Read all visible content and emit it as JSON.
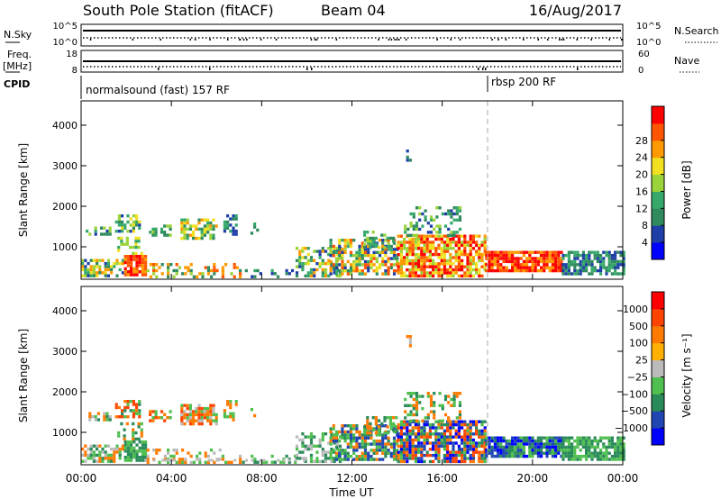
{
  "header": {
    "station": "South Pole Station (fitACF)",
    "beam": "Beam 04",
    "date": "16/Aug/2017"
  },
  "strip_panels": {
    "sky": {
      "left_label": "N.Sky",
      "right_label": "N.Search",
      "left_ticks": [
        "10^5",
        "10^0"
      ],
      "right_ticks": [
        "10^5",
        "10^0"
      ]
    },
    "freq": {
      "left_label_1": "Freq.",
      "left_label_2": "[MHz]",
      "right_label": "Nave",
      "left_ticks": [
        "18",
        "8"
      ],
      "right_ticks": [
        "60",
        "0"
      ]
    },
    "cpid": {
      "label": "CPID",
      "programs": [
        {
          "name": "normalsound (fast) 157 RF",
          "start_hour": 0
        },
        {
          "name": "rbsp 200 RF",
          "start_hour": 18
        }
      ]
    }
  },
  "chart_data": [
    {
      "type": "heatmap",
      "name": "power",
      "ylabel": "Slant Range [km]",
      "ylim": [
        200,
        4600
      ],
      "yticks": [
        "1000",
        "2000",
        "3000",
        "4000"
      ],
      "xlim": [
        0,
        24
      ],
      "colorbar_label": "Power [dB]",
      "colorbar_ticks": [
        "4",
        "8",
        "12",
        "16",
        "20",
        "24",
        "28"
      ],
      "colors": [
        "#0000ff",
        "#1f3fa8",
        "#2f8a5e",
        "#36a86a",
        "#9bd33a",
        "#f0e020",
        "#ff9900",
        "#ff5500",
        "#ff0000"
      ]
    },
    {
      "type": "heatmap",
      "name": "velocity",
      "ylabel": "Slant Range [km]",
      "ylim": [
        200,
        4600
      ],
      "yticks": [
        "1000",
        "2000",
        "3000",
        "4000"
      ],
      "xlim": [
        0,
        24
      ],
      "colorbar_label": "Velocity [m s⁻¹]",
      "colorbar_ticks": [
        "1000",
        "500",
        "100",
        "25",
        "−25",
        "−100",
        "−500",
        "−1000"
      ],
      "colors": [
        "#0000ff",
        "#2046b4",
        "#2a8a5a",
        "#4fbf4f",
        "#bbbbbb",
        "#ffb000",
        "#ff7a00",
        "#ff4400",
        "#ff0000"
      ]
    }
  ],
  "xaxis": {
    "label": "Time UT",
    "ticks": [
      "00:00",
      "04:00",
      "08:00",
      "12:00",
      "16:00",
      "20:00",
      "00:00"
    ]
  },
  "scatter_regions": [
    {
      "t0": 0.2,
      "t1": 1.3,
      "r0": 1300,
      "r1": 1500,
      "pc": [
        1,
        2,
        3,
        4
      ],
      "vc": [
        4,
        2,
        6,
        3
      ],
      "d": 0.6
    },
    {
      "t0": 1.5,
      "t1": 2.6,
      "r0": 1400,
      "r1": 1800,
      "pc": [
        1,
        2,
        3,
        4,
        5
      ],
      "vc": [
        2,
        6,
        7,
        3
      ],
      "d": 0.6
    },
    {
      "t0": 3.0,
      "t1": 4.0,
      "r0": 1250,
      "r1": 1550,
      "pc": [
        2,
        3,
        4
      ],
      "vc": [
        6,
        7,
        3
      ],
      "d": 0.5
    },
    {
      "t0": 4.4,
      "t1": 6.0,
      "r0": 1200,
      "r1": 1700,
      "pc": [
        2,
        3,
        4,
        5,
        6
      ],
      "vc": [
        6,
        7,
        3,
        4
      ],
      "d": 0.7
    },
    {
      "t0": 6.3,
      "t1": 6.9,
      "r0": 1300,
      "r1": 1800,
      "pc": [
        1,
        2,
        3
      ],
      "vc": [
        3,
        6
      ],
      "d": 0.5
    },
    {
      "t0": 7.5,
      "t1": 7.8,
      "r0": 1300,
      "r1": 1600,
      "pc": [
        2,
        3
      ],
      "vc": [
        3,
        6
      ],
      "d": 0.3
    },
    {
      "t0": 1.6,
      "t1": 2.7,
      "r0": 800,
      "r1": 1250,
      "pc": [
        3,
        4,
        5
      ],
      "vc": [
        2,
        3,
        6
      ],
      "d": 0.4
    },
    {
      "t0": 0.0,
      "t1": 1.9,
      "r0": 300,
      "r1": 700,
      "pc": [
        1,
        2,
        3,
        4,
        5,
        6
      ],
      "vc": [
        3,
        2,
        6,
        4
      ],
      "d": 0.65
    },
    {
      "t0": 1.9,
      "t1": 2.9,
      "r0": 300,
      "r1": 800,
      "pc": [
        6,
        7,
        8
      ],
      "vc": [
        2,
        3
      ],
      "d": 0.85
    },
    {
      "t0": 2.9,
      "t1": 7.0,
      "r0": 250,
      "r1": 600,
      "pc": [
        2,
        4,
        6,
        7
      ],
      "vc": [
        4,
        6,
        3
      ],
      "d": 0.3
    },
    {
      "t0": 7.0,
      "t1": 9.5,
      "r0": 250,
      "r1": 450,
      "pc": [
        1,
        2,
        3
      ],
      "vc": [
        2,
        3
      ],
      "d": 0.4
    },
    {
      "t0": 9.5,
      "t1": 11.5,
      "r0": 300,
      "r1": 1000,
      "pc": [
        1,
        2,
        3,
        4,
        5,
        6
      ],
      "vc": [
        2,
        3,
        4
      ],
      "d": 0.5
    },
    {
      "t0": 11.0,
      "t1": 14.0,
      "r0": 300,
      "r1": 1200,
      "pc": [
        1,
        2,
        3,
        4,
        5,
        6,
        7
      ],
      "vc": [
        1,
        2,
        3,
        6
      ],
      "d": 0.7
    },
    {
      "t0": 12.5,
      "t1": 14.0,
      "r0": 1000,
      "r1": 1400,
      "pc": [
        2,
        3,
        4,
        5
      ],
      "vc": [
        2,
        3,
        6
      ],
      "d": 0.45
    },
    {
      "t0": 14.0,
      "t1": 17.9,
      "r0": 300,
      "r1": 1300,
      "pc": [
        4,
        5,
        6,
        7,
        8
      ],
      "vc": [
        0,
        1,
        2,
        3,
        6,
        7
      ],
      "d": 0.8
    },
    {
      "t0": 14.3,
      "t1": 16.8,
      "r0": 1300,
      "r1": 2000,
      "pc": [
        1,
        2,
        3,
        4
      ],
      "vc": [
        2,
        3,
        6
      ],
      "d": 0.35
    },
    {
      "t0": 17.9,
      "t1": 21.3,
      "r0": 400,
      "r1": 900,
      "pc": [
        6,
        7,
        8,
        8
      ],
      "vc": [
        0,
        1,
        2,
        2,
        3
      ],
      "d": 0.9
    },
    {
      "t0": 21.3,
      "t1": 24.0,
      "r0": 350,
      "r1": 900,
      "pc": [
        1,
        2,
        3
      ],
      "vc": [
        2,
        3
      ],
      "d": 0.8
    },
    {
      "t0": 14.4,
      "t1": 14.6,
      "r0": 3100,
      "r1": 3400,
      "pc": [
        1,
        2
      ],
      "vc": [
        4,
        6
      ],
      "d": 0.5
    }
  ]
}
